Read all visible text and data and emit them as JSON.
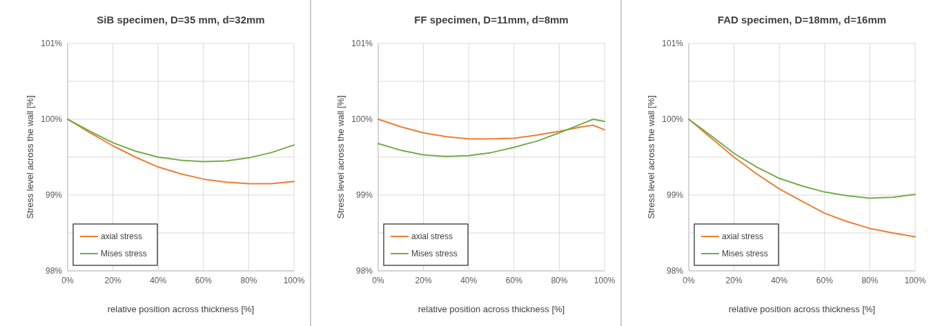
{
  "chart_data": [
    {
      "type": "line",
      "title": "SiB specimen, D=35 mm, d=32mm",
      "xlabel": "relative position across thickness [%]",
      "ylabel": "Stress level across the wall [%]",
      "xlim": [
        0,
        100
      ],
      "ylim": [
        98,
        101
      ],
      "xticks": [
        {
          "value": 0,
          "label": "0%"
        },
        {
          "value": 20,
          "label": "20%"
        },
        {
          "value": 40,
          "label": "40%"
        },
        {
          "value": 60,
          "label": "60%"
        },
        {
          "value": 80,
          "label": "80%"
        },
        {
          "value": 100,
          "label": "100%"
        }
      ],
      "yticks": [
        {
          "value": 98,
          "label": "98%"
        },
        {
          "value": 98.5,
          "label": null
        },
        {
          "value": 99,
          "label": "99%"
        },
        {
          "value": 99.5,
          "label": null
        },
        {
          "value": 100,
          "label": "100%"
        },
        {
          "value": 100.5,
          "label": null
        },
        {
          "value": 101,
          "label": "101%"
        }
      ],
      "grid": true,
      "legend": "bottom left",
      "x": [
        0,
        10,
        20,
        30,
        40,
        50,
        60,
        70,
        80,
        90,
        100
      ],
      "series": [
        {
          "name": "axial stress",
          "color": "#ed7d31",
          "values": [
            100,
            99.82,
            99.65,
            99.5,
            99.37,
            99.28,
            99.21,
            99.17,
            99.15,
            99.15,
            99.18
          ]
        },
        {
          "name": "Mises stress",
          "color": "#70ad47",
          "values": [
            100,
            99.84,
            99.69,
            99.58,
            99.5,
            99.46,
            99.44,
            99.45,
            99.49,
            99.56,
            99.66
          ]
        }
      ]
    },
    {
      "type": "line",
      "title": "FF specimen, D=11mm, d=8mm",
      "xlabel": "relative position across thickness [%]",
      "ylabel": "Stress level across the wall [%]",
      "xlim": [
        0,
        100
      ],
      "ylim": [
        98,
        101
      ],
      "xticks": [
        {
          "value": 0,
          "label": "0%"
        },
        {
          "value": 20,
          "label": "20%"
        },
        {
          "value": 40,
          "label": "40%"
        },
        {
          "value": 60,
          "label": "60%"
        },
        {
          "value": 80,
          "label": "80%"
        },
        {
          "value": 100,
          "label": "100%"
        }
      ],
      "yticks": [
        {
          "value": 98,
          "label": "98%"
        },
        {
          "value": 98.5,
          "label": null
        },
        {
          "value": 99,
          "label": "99%"
        },
        {
          "value": 99.5,
          "label": null
        },
        {
          "value": 100,
          "label": "100%"
        },
        {
          "value": 100.5,
          "label": null
        },
        {
          "value": 101,
          "label": "101%"
        }
      ],
      "grid": true,
      "legend": "bottom left",
      "x": [
        0,
        10,
        20,
        30,
        40,
        50,
        60,
        70,
        80,
        90,
        95,
        100
      ],
      "series": [
        {
          "name": "axial stress",
          "color": "#ed7d31",
          "values": [
            100,
            99.9,
            99.82,
            99.77,
            99.74,
            99.74,
            99.75,
            99.79,
            99.84,
            99.9,
            99.92,
            99.86
          ]
        },
        {
          "name": "Mises stress",
          "color": "#70ad47",
          "values": [
            99.68,
            99.59,
            99.53,
            99.51,
            99.52,
            99.56,
            99.63,
            99.71,
            99.82,
            99.94,
            100,
            99.97
          ]
        }
      ]
    },
    {
      "type": "line",
      "title": "FAD specimen, D=18mm, d=16mm",
      "xlabel": "relative position across thickness [%]",
      "ylabel": "Stress level across the wall [%]",
      "xlim": [
        0,
        100
      ],
      "ylim": [
        98,
        101
      ],
      "xticks": [
        {
          "value": 0,
          "label": "0%"
        },
        {
          "value": 20,
          "label": "20%"
        },
        {
          "value": 40,
          "label": "40%"
        },
        {
          "value": 60,
          "label": "60%"
        },
        {
          "value": 80,
          "label": "80%"
        },
        {
          "value": 100,
          "label": "100%"
        }
      ],
      "yticks": [
        {
          "value": 98,
          "label": "98%"
        },
        {
          "value": 98.5,
          "label": null
        },
        {
          "value": 99,
          "label": "99%"
        },
        {
          "value": 99.5,
          "label": null
        },
        {
          "value": 100,
          "label": "100%"
        },
        {
          "value": 100.5,
          "label": null
        },
        {
          "value": 101,
          "label": "101%"
        }
      ],
      "grid": true,
      "legend": "bottom left",
      "x": [
        0,
        10,
        20,
        30,
        40,
        50,
        60,
        70,
        80,
        90,
        100
      ],
      "series": [
        {
          "name": "axial stress",
          "color": "#ed7d31",
          "values": [
            100,
            99.75,
            99.5,
            99.28,
            99.08,
            98.92,
            98.76,
            98.65,
            98.56,
            98.5,
            98.45
          ]
        },
        {
          "name": "Mises stress",
          "color": "#70ad47",
          "values": [
            100,
            99.78,
            99.55,
            99.37,
            99.22,
            99.12,
            99.04,
            98.99,
            98.96,
            98.97,
            99.01
          ]
        }
      ]
    }
  ]
}
